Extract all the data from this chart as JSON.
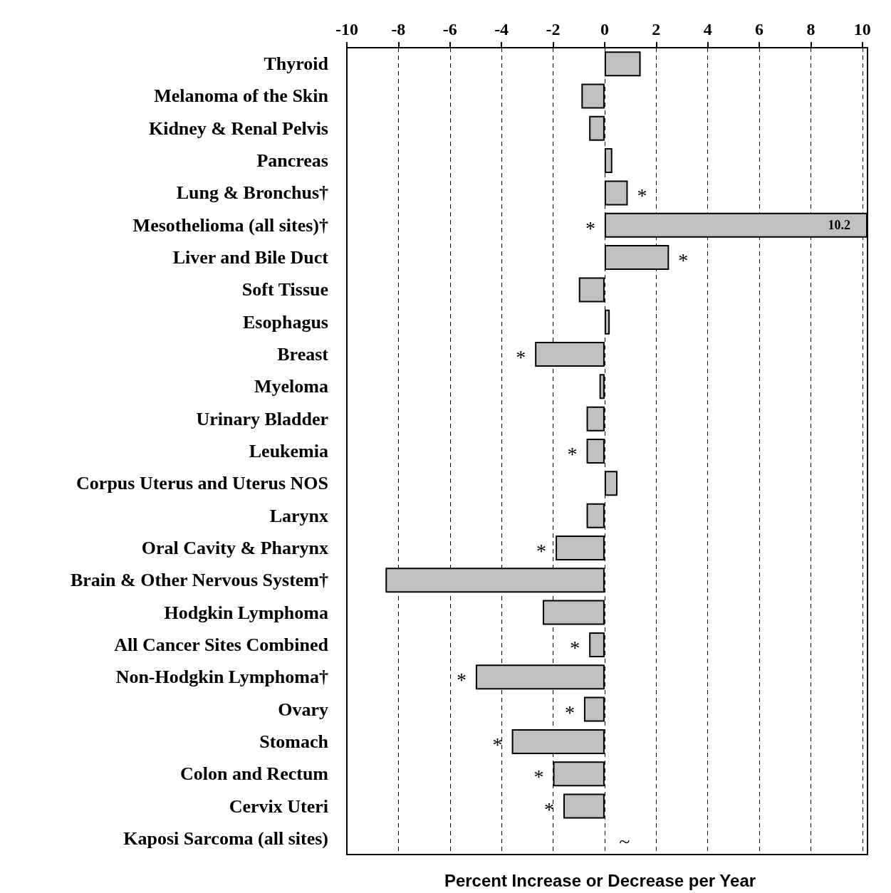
{
  "chart_data": {
    "type": "bar",
    "orientation": "horizontal",
    "xlabel": "Percent Increase or Decrease per Year",
    "categories": [
      "Thyroid",
      "Melanoma of the Skin",
      "Kidney & Renal Pelvis",
      "Pancreas",
      "Lung & Bronchus†",
      "Mesothelioma (all sites)†",
      "Liver and Bile Duct",
      "Soft Tissue",
      "Esophagus",
      "Breast",
      "Myeloma",
      "Urinary Bladder",
      "Leukemia",
      "Corpus Uterus and Uterus NOS",
      "Larynx",
      "Oral Cavity & Pharynx",
      "Brain & Other Nervous System†",
      "Hodgkin Lymphoma",
      "All Cancer Sites Combined",
      "Non-Hodgkin Lymphoma†",
      "Ovary",
      "Stomach",
      "Colon and Rectum",
      "Cervix Uteri",
      "Kaposi Sarcoma (all sites)"
    ],
    "values": [
      1.4,
      -0.9,
      -0.6,
      0.3,
      0.9,
      10.2,
      2.5,
      -1.0,
      0.2,
      -2.7,
      -0.2,
      -0.7,
      -0.7,
      0.5,
      -0.7,
      -1.9,
      -8.5,
      -2.4,
      -0.6,
      -5.0,
      -0.8,
      -3.6,
      -2.0,
      -1.6,
      null
    ],
    "value_labels": [
      null,
      null,
      null,
      null,
      null,
      "10.2",
      null,
      null,
      null,
      null,
      null,
      null,
      null,
      null,
      null,
      null,
      null,
      null,
      null,
      null,
      null,
      null,
      null,
      null,
      "~"
    ],
    "color": "#c0c0c0",
    "xlim": [
      -10,
      10.2
    ],
    "xticks": [
      -10,
      -8,
      -6,
      -4,
      -2,
      0,
      2,
      4,
      6,
      8,
      10
    ],
    "grid": "x",
    "annotations": [
      {
        "text": "*",
        "x": 0.9,
        "y": "Lung & Bronchus†"
      },
      {
        "text": "*",
        "x": 0,
        "y": "Mesothelioma (all sites)†"
      },
      {
        "text": "*",
        "x": 2.5,
        "y": "Liver and Bile Duct"
      },
      {
        "text": "*",
        "x": -2.7,
        "y": "Breast"
      },
      {
        "text": "*",
        "x": -0.7,
        "y": "Leukemia"
      },
      {
        "text": "*",
        "x": -1.9,
        "y": "Oral Cavity & Pharynx"
      },
      {
        "text": "*",
        "x": -0.6,
        "y": "All Cancer Sites Combined"
      },
      {
        "text": "*",
        "x": -5.0,
        "y": "Non-Hodgkin Lymphoma†"
      },
      {
        "text": "*",
        "x": -0.8,
        "y": "Ovary"
      },
      {
        "text": "*",
        "x": -3.6,
        "y": "Stomach"
      },
      {
        "text": "*",
        "x": -2.0,
        "y": "Colon and Rectum"
      },
      {
        "text": "*",
        "x": -1.6,
        "y": "Cervix Uteri"
      }
    ]
  }
}
